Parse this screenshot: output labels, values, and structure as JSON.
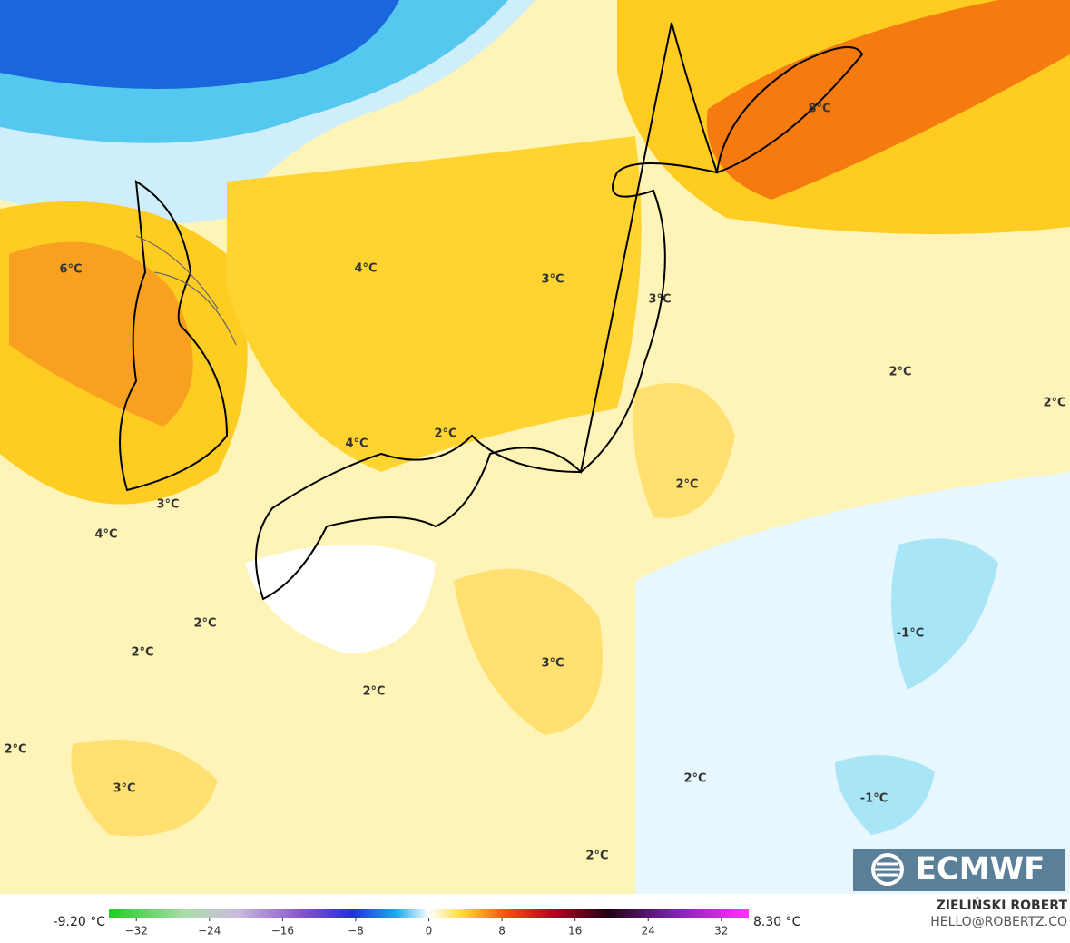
{
  "map": {
    "labels": [
      "8°C",
      "6°C",
      "4°C",
      "3°C",
      "3°C",
      "2°C",
      "2°C",
      "2°C",
      "4°C",
      "2°C",
      "3°C",
      "4°C",
      "2°C",
      "2°C",
      "-1°C",
      "3°C",
      "2°C",
      "2°C",
      "3°C",
      "2°C",
      "-1°C",
      "2°C"
    ]
  },
  "logo": "ECMWF",
  "colorbar": {
    "min_label": "-9.20 °C",
    "max_label": "8.30 °C",
    "lim": [
      -35,
      35
    ],
    "ticks": [
      {
        "value": -32,
        "label": "−32"
      },
      {
        "value": -24,
        "label": "−24"
      },
      {
        "value": -16,
        "label": "−16"
      },
      {
        "value": -8,
        "label": "−8"
      },
      0,
      8,
      16,
      24,
      32
    ]
  },
  "credit": {
    "author": "ZIELIŃSKI ROBERT",
    "email": "HELLO@ROBERTZ.CO"
  }
}
